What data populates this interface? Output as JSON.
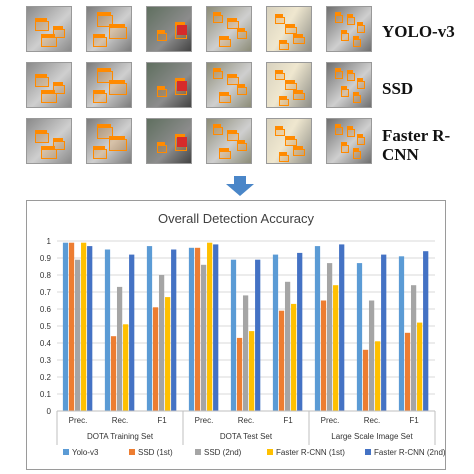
{
  "row_labels": [
    "YOLO-v3",
    "SSD",
    "Faster R-CNN"
  ],
  "thumbnail_tones": [
    "#8a8a8a",
    "#7c7c7c",
    "#6e6e6e",
    "#8c8c78",
    "#b7b3a6",
    "#6f6f6f"
  ],
  "detection_color": "#ff8a00",
  "arrow_color": "#4a86c8",
  "chart_data": {
    "type": "bar",
    "title": "Overall Detection Accuracy",
    "xlabel": "",
    "ylabel": "",
    "ylim": [
      0,
      1
    ],
    "yticks": [
      "0",
      "0.1",
      "0.2",
      "0.3",
      "0.4",
      "0.5",
      "0.6",
      "0.7",
      "0.8",
      "0.9",
      "1"
    ],
    "grid": true,
    "legend_position": "bottom",
    "groups": [
      {
        "name": "DOTA Training Set",
        "categories": [
          "Prec.",
          "Rec.",
          "F1"
        ]
      },
      {
        "name": "DOTA Test Set",
        "categories": [
          "Prec.",
          "Rec.",
          "F1"
        ]
      },
      {
        "name": "Large Scale Image Set",
        "categories": [
          "Prec.",
          "Rec.",
          "F1"
        ]
      }
    ],
    "series": [
      {
        "name": "Yolo-v3",
        "color": "#5b9bd5",
        "values": [
          0.99,
          0.95,
          0.97,
          0.96,
          0.89,
          0.92,
          0.97,
          0.87,
          0.91
        ]
      },
      {
        "name": "SSD (1st)",
        "color": "#ed7d31",
        "values": [
          0.99,
          0.44,
          0.61,
          0.96,
          0.43,
          0.59,
          0.65,
          0.36,
          0.46
        ]
      },
      {
        "name": "SSD (2nd)",
        "color": "#a5a5a5",
        "values": [
          0.89,
          0.73,
          0.8,
          0.86,
          0.68,
          0.76,
          0.87,
          0.65,
          0.74
        ]
      },
      {
        "name": "Faster R-CNN (1st)",
        "color": "#ffc000",
        "values": [
          0.99,
          0.51,
          0.67,
          0.99,
          0.47,
          0.63,
          0.74,
          0.41,
          0.52
        ]
      },
      {
        "name": "Faster R-CNN (2nd)",
        "color": "#4472c4",
        "values": [
          0.97,
          0.92,
          0.95,
          0.98,
          0.89,
          0.93,
          0.98,
          0.92,
          0.94
        ]
      }
    ]
  }
}
